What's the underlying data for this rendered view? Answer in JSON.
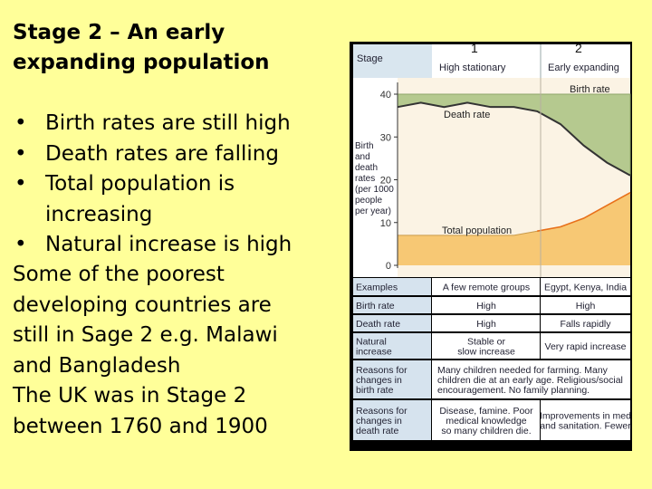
{
  "slide": {
    "title_line1": "Stage 2 – An early",
    "title_line2": "expanding population",
    "bullets": [
      "Birth rates are still high",
      "Death rates are falling",
      "Total population is increasing",
      "Natural increase is high"
    ],
    "notes": [
      "Some of the poorest",
      "developing countries are",
      "still in Sage 2 e.g. Malawi",
      "and Bangladesh",
      "The UK was in Stage 2",
      "between 1760 and 1900"
    ]
  },
  "figure": {
    "header": {
      "stage_label": "Stage",
      "stage1_number": "1",
      "stage1_name": "High stationary",
      "stage2_number": "2",
      "stage2_name": "Early expanding"
    },
    "chart": {
      "ylabel_lines": [
        "Birth",
        "and",
        "death",
        "rates",
        "(per 1000",
        "people",
        "per year)"
      ],
      "y_ticks": [
        "40",
        "30",
        "20",
        "10",
        "0"
      ],
      "label_birth_rate": "Birth rate",
      "label_death_rate": "Death rate",
      "label_total_population": "Total population"
    },
    "table": [
      {
        "label": [
          "Examples"
        ],
        "stage1": [
          "A few remote groups"
        ],
        "stage2": [
          "Egypt, Kenya, India"
        ]
      },
      {
        "label": [
          "Birth rate"
        ],
        "stage1": [
          "High"
        ],
        "stage2": [
          "High"
        ]
      },
      {
        "label": [
          "Death rate"
        ],
        "stage1": [
          "High"
        ],
        "stage2": [
          "Falls rapidly"
        ]
      },
      {
        "label": [
          "Natural",
          "increase"
        ],
        "stage1": [
          "Stable or",
          "slow increase"
        ],
        "stage2": [
          "Very rapid increase"
        ]
      },
      {
        "label": [
          "Reasons for",
          "changes in",
          "birth rate"
        ],
        "merged": [
          "Many children needed for farming. Many",
          "children die at an early age. Religious/social",
          "encouragement. No family planning."
        ]
      },
      {
        "label": [
          "Reasons for",
          "changes in",
          "death rate"
        ],
        "stage1": [
          "Disease, famine. Poor",
          "medical knowledge",
          "so many children die."
        ],
        "stage2": [
          "Improvements in med",
          "and sanitation. Fewer"
        ]
      }
    ]
  },
  "chart_data": {
    "type": "line",
    "x": [
      0,
      1,
      2,
      3,
      4,
      5,
      6,
      7,
      8,
      9,
      10
    ],
    "series": [
      {
        "name": "Birth rate",
        "values": [
          40,
          40,
          40,
          40,
          40,
          40,
          40,
          40,
          40,
          40,
          40
        ]
      },
      {
        "name": "Death rate",
        "values": [
          37,
          38,
          37,
          38,
          37,
          37,
          36,
          33,
          28,
          24,
          21
        ]
      },
      {
        "name": "Total population",
        "values": [
          7,
          7,
          7,
          7,
          7,
          7,
          8,
          9,
          11,
          14,
          17
        ]
      }
    ],
    "xlabel": "",
    "ylabel": "Birth and death rates (per 1000 people per year)",
    "ylim": [
      0,
      40
    ],
    "y_ticks": [
      0,
      10,
      20,
      30,
      40
    ],
    "colors": {
      "birth_area": "#b5c98f",
      "death_line": "#333333",
      "population_area": "#f7c874",
      "population_line": "#e8701a"
    }
  }
}
